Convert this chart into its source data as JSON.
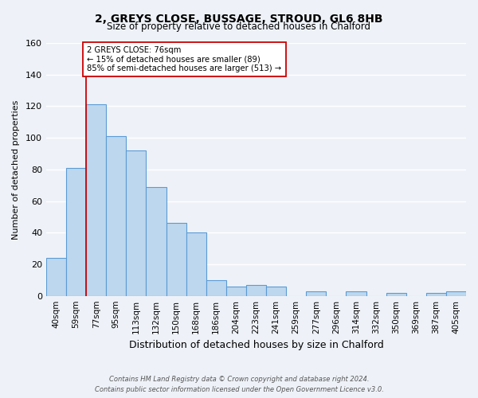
{
  "title": "2, GREYS CLOSE, BUSSAGE, STROUD, GL6 8HB",
  "subtitle": "Size of property relative to detached houses in Chalford",
  "xlabel": "Distribution of detached houses by size in Chalford",
  "ylabel": "Number of detached properties",
  "bar_labels": [
    "40sqm",
    "59sqm",
    "77sqm",
    "95sqm",
    "113sqm",
    "132sqm",
    "150sqm",
    "168sqm",
    "186sqm",
    "204sqm",
    "223sqm",
    "241sqm",
    "259sqm",
    "277sqm",
    "296sqm",
    "314sqm",
    "332sqm",
    "350sqm",
    "369sqm",
    "387sqm",
    "405sqm"
  ],
  "bar_values": [
    24,
    81,
    121,
    101,
    92,
    69,
    46,
    40,
    10,
    6,
    7,
    6,
    0,
    3,
    0,
    3,
    0,
    2,
    0,
    2,
    3
  ],
  "bar_color": "#bdd7ee",
  "bar_edge_color": "#5b9bd5",
  "ylim": [
    0,
    160
  ],
  "yticks": [
    0,
    20,
    40,
    60,
    80,
    100,
    120,
    140,
    160
  ],
  "property_line_index": 2,
  "property_line_color": "#cc0000",
  "annotation_title": "2 GREYS CLOSE: 76sqm",
  "annotation_line1": "← 15% of detached houses are smaller (89)",
  "annotation_line2": "85% of semi-detached houses are larger (513) →",
  "annotation_box_color": "#ffffff",
  "annotation_box_edge": "#cc0000",
  "footer_line1": "Contains HM Land Registry data © Crown copyright and database right 2024.",
  "footer_line2": "Contains public sector information licensed under the Open Government Licence v3.0.",
  "background_color": "#eef2f8",
  "grid_color": "#ffffff"
}
